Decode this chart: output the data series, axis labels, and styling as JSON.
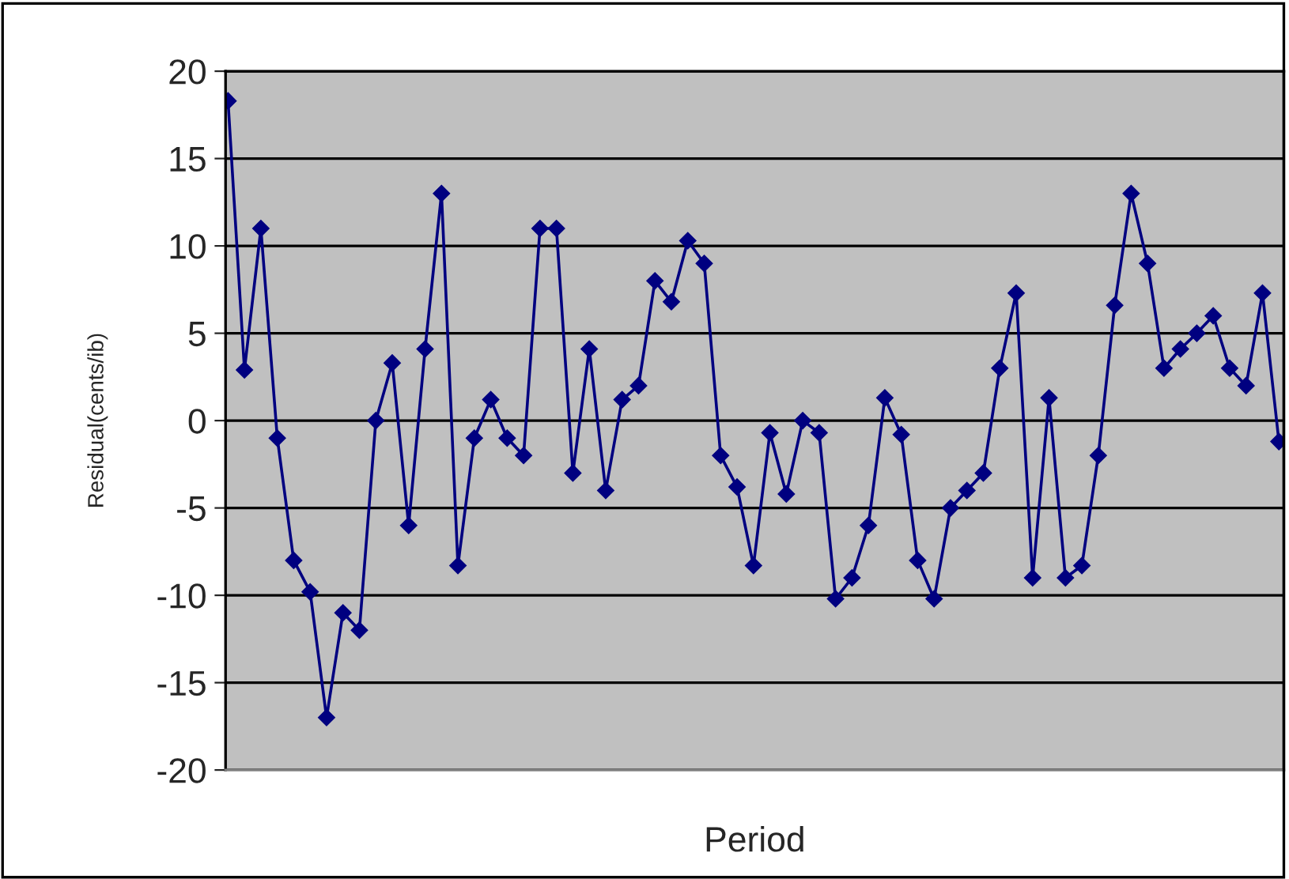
{
  "chart_data": {
    "type": "line",
    "xlabel": "Period",
    "ylabel": "Residual(cents/ib)",
    "categories": [
      null,
      null,
      null,
      null,
      null,
      null,
      null,
      null,
      null,
      null,
      null,
      null,
      null,
      null,
      null,
      null,
      null,
      null,
      null,
      null,
      null,
      null,
      null,
      null,
      null,
      null,
      null,
      null,
      null,
      null,
      null,
      null,
      null,
      null,
      null,
      null,
      null,
      null,
      null,
      null,
      null,
      null,
      null,
      null,
      null,
      null,
      null,
      null,
      null,
      null,
      null,
      null,
      null,
      null,
      null,
      null,
      null,
      null,
      null,
      null,
      null,
      null,
      null,
      null,
      null
    ],
    "series": [
      {
        "color": "#000080",
        "values": [
          18.3,
          2.9,
          11,
          -1,
          -8,
          -9.8,
          -17,
          -11,
          -12,
          0,
          3.3,
          -6,
          4.1,
          13,
          -8.3,
          -1,
          1.2,
          -1,
          -2,
          11,
          11,
          -3,
          4.1,
          -4,
          1.2,
          2,
          8,
          6.8,
          10.3,
          9,
          -2,
          -3.8,
          -8.3,
          -0.7,
          -4.2,
          0,
          -0.7,
          -10.2,
          -9,
          -6,
          1.3,
          -0.8,
          -8,
          -10.2,
          -5,
          -4,
          -3,
          3,
          7.3,
          -9,
          1.3,
          -9,
          -8.3,
          -2,
          6.6,
          13,
          9,
          3,
          4.1,
          5,
          6,
          3,
          2,
          7.3,
          -1.2
        ]
      }
    ],
    "ylim": [
      -20,
      20
    ],
    "yticks": [
      -20,
      -15,
      -10,
      -5,
      0,
      5,
      10,
      15,
      20
    ],
    "grid": "y",
    "marker": "diamond",
    "line_style": "solid"
  }
}
